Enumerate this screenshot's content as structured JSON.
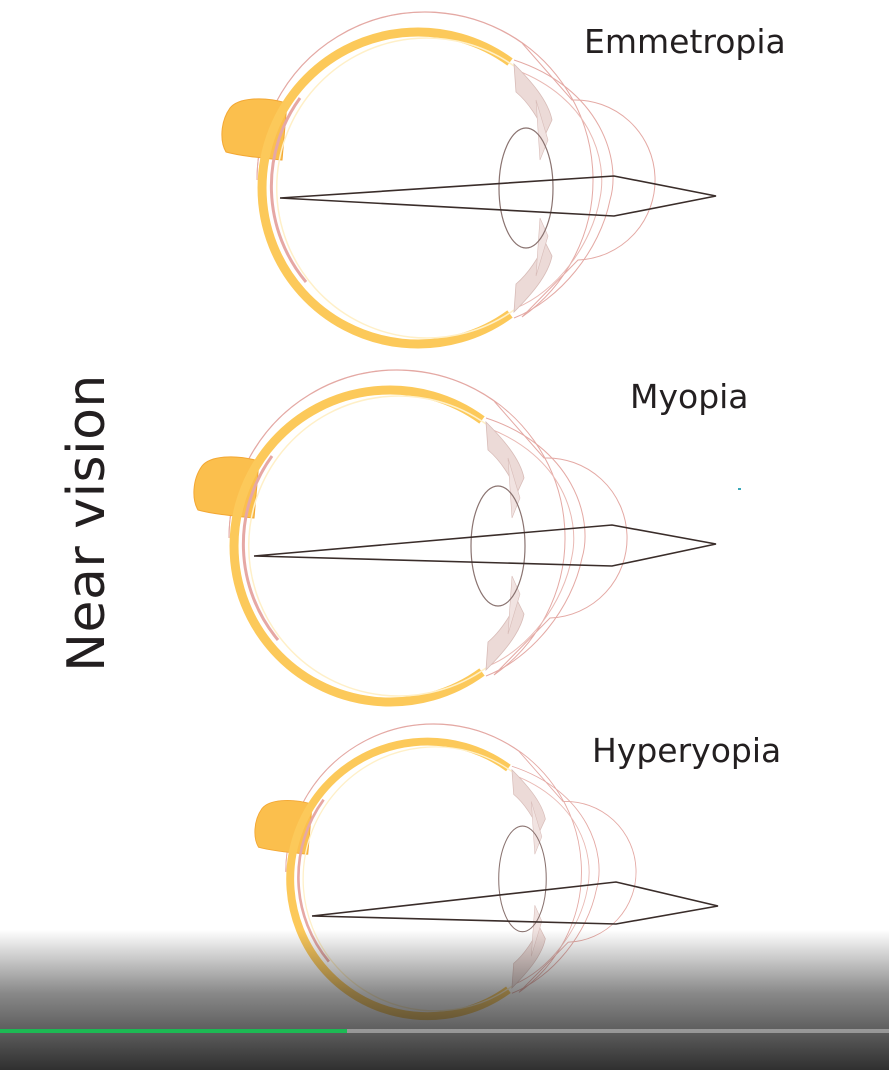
{
  "side_label": "Near vision",
  "eyes": [
    {
      "id": "emmetropia",
      "title": "Emmetropia"
    },
    {
      "id": "myopia",
      "title": "Myopia"
    },
    {
      "id": "hyperopia",
      "title": "Hyperyopia"
    }
  ],
  "player": {
    "progress_fraction": 0.39
  },
  "colors": {
    "sclera_fill": "#fbc85c",
    "sclera_edge": "#f6a83a",
    "choroid": "#e6a8a4",
    "outline": "#e4a9a4",
    "ray": "#3a2d2a",
    "lens": "#8a7370",
    "iris": "#ead8d5",
    "progress": "#1db954"
  }
}
